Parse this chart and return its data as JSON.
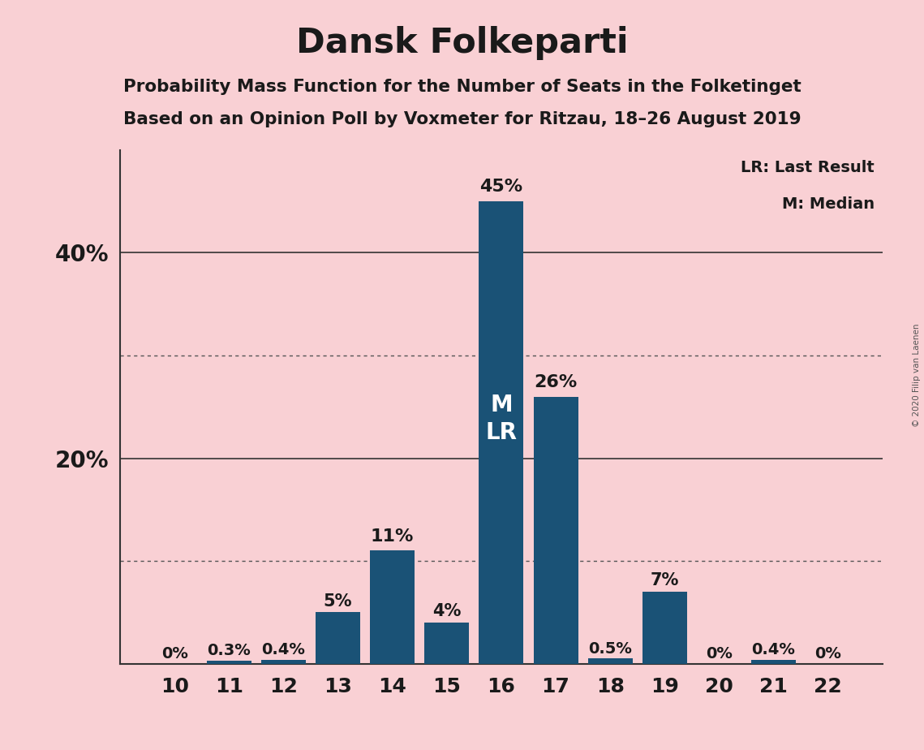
{
  "title": "Dansk Folkeparti",
  "subtitle1": "Probability Mass Function for the Number of Seats in the Folketinget",
  "subtitle2": "Based on an Opinion Poll by Voxmeter for Ritzau, 18–26 August 2019",
  "copyright": "© 2020 Filip van Laenen",
  "legend_lr": "LR: Last Result",
  "legend_m": "M: Median",
  "seats": [
    10,
    11,
    12,
    13,
    14,
    15,
    16,
    17,
    18,
    19,
    20,
    21,
    22
  ],
  "values": [
    0.0,
    0.3,
    0.4,
    5.0,
    11.0,
    4.0,
    45.0,
    26.0,
    0.5,
    7.0,
    0.0,
    0.4,
    0.0
  ],
  "bar_labels": [
    "0%",
    "0.3%",
    "0.4%",
    "5%",
    "11%",
    "4%",
    "45%",
    "26%",
    "0.5%",
    "7%",
    "0%",
    "0.4%",
    "0%"
  ],
  "bar_color": "#1a5276",
  "background_color": "#f9d0d4",
  "text_color": "#1a1a1a",
  "median_seat": 16,
  "lr_seat": 16,
  "solid_lines": [
    20,
    40
  ],
  "dotted_lines": [
    10,
    30
  ],
  "ylim": [
    0,
    50
  ]
}
